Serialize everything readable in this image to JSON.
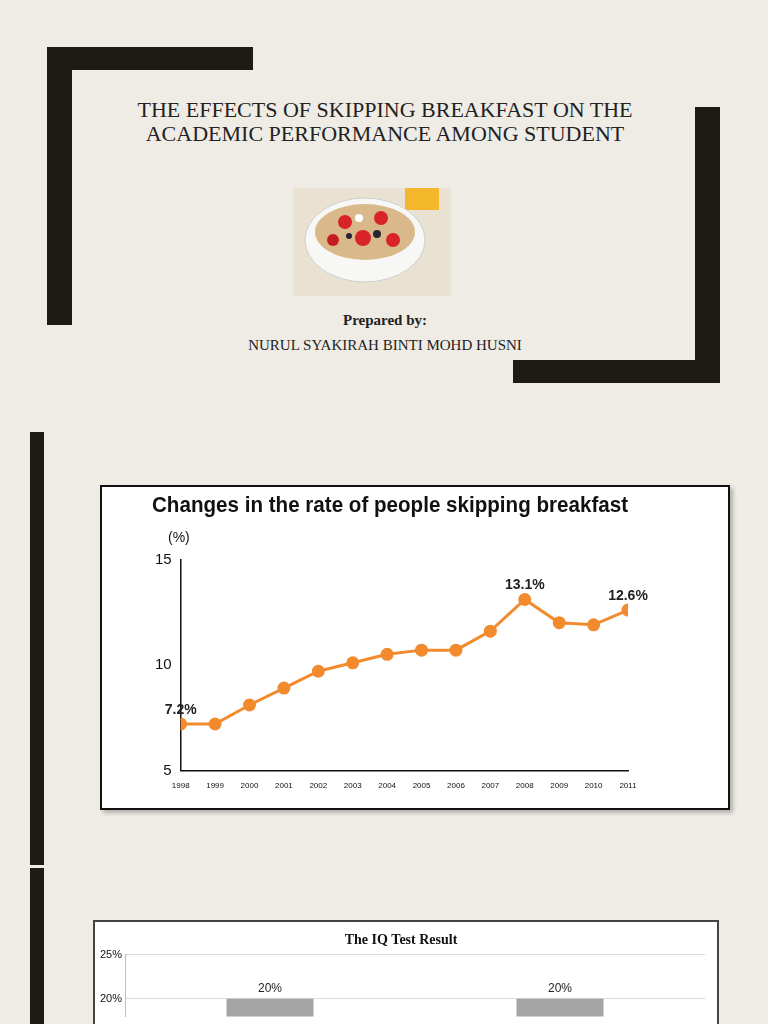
{
  "title_slide": {
    "title": "THE EFFECTS OF SKIPPING BREAKFAST ON THE ACADEMIC PERFORMANCE AMONG STUDENT",
    "prepared_by_label": "Prepared by:",
    "author": "NURUL SYAKIRAH BINTI MOHD HUSNI"
  },
  "chart_data": [
    {
      "type": "line",
      "title": "Changes in the rate of people skipping breakfast",
      "y_label": "(%)",
      "categories": [
        "1998",
        "1999",
        "2000",
        "2001",
        "2002",
        "2003",
        "2004",
        "2005",
        "2006",
        "2007",
        "2008",
        "2009",
        "2010",
        "2011"
      ],
      "values": [
        7.2,
        7.2,
        8.1,
        8.9,
        9.7,
        10.1,
        10.5,
        10.7,
        10.7,
        11.6,
        13.1,
        12.0,
        11.9,
        12.6
      ],
      "value_labels": [
        "7.2%",
        null,
        null,
        null,
        null,
        null,
        null,
        null,
        null,
        null,
        "13.1%",
        null,
        null,
        "12.6%"
      ],
      "data_labels": true,
      "color": "#f28a2e",
      "marker": "circle",
      "ylim": [
        5,
        15
      ],
      "yticks": [
        5,
        10,
        15
      ],
      "grid": false
    },
    {
      "type": "bar",
      "title": "The IQ Test Result",
      "categories": [
        null,
        null
      ],
      "values": [
        20,
        20
      ],
      "value_labels": [
        "20%",
        "20%"
      ],
      "data_labels": true,
      "color": "#a5a5a5",
      "tick_labels": "y",
      "ylim": [
        18,
        25
      ],
      "yticks": [
        {
          "value": 20,
          "label": "20%"
        },
        {
          "value": 25,
          "label": "25%"
        }
      ],
      "grid": true
    }
  ]
}
